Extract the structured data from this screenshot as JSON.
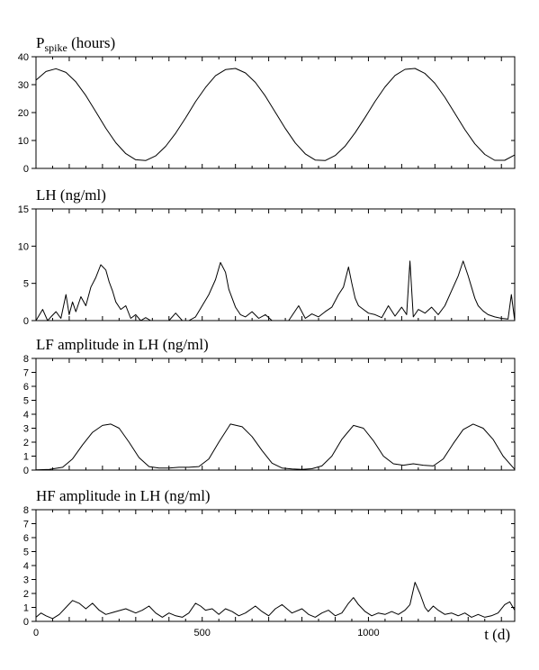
{
  "chart_data": [
    {
      "type": "line",
      "title": "P",
      "title_sub": "spike",
      "title_rest": " (hours)",
      "ylim": [
        0,
        40
      ],
      "yticks": [
        "0",
        "10",
        "20",
        "30",
        "40"
      ],
      "xlim": [
        0,
        1440
      ],
      "series": [
        {
          "x": [
            0,
            30,
            60,
            90,
            120,
            150,
            180,
            210,
            240,
            270,
            300,
            330,
            360,
            390,
            420,
            450,
            480,
            510,
            540,
            570,
            600,
            630,
            660,
            690,
            720,
            750,
            780,
            810,
            840,
            870,
            900,
            930,
            960,
            990,
            1020,
            1050,
            1080,
            1110,
            1140,
            1170,
            1200,
            1230,
            1260,
            1290,
            1320,
            1350,
            1380,
            1410,
            1440
          ],
          "y": [
            31.6,
            34.7,
            35.7,
            34.4,
            31.0,
            26.1,
            20.3,
            14.4,
            9.2,
            5.3,
            3.1,
            2.8,
            4.5,
            7.9,
            12.6,
            18.1,
            23.9,
            29.0,
            33.2,
            35.4,
            35.8,
            34.2,
            30.8,
            25.9,
            20.1,
            14.3,
            9.1,
            5.2,
            3.0,
            2.8,
            4.6,
            8.0,
            12.8,
            18.3,
            24.0,
            29.2,
            33.3,
            35.5,
            35.8,
            34.0,
            30.5,
            25.5,
            19.7,
            13.9,
            8.8,
            5.0,
            2.9,
            2.9,
            4.8
          ]
        }
      ]
    },
    {
      "type": "line",
      "title": "LH (ng/ml)",
      "ylim": [
        0,
        15
      ],
      "yticks": [
        "0",
        "5",
        "10",
        "15"
      ],
      "xlim": [
        0,
        1440
      ],
      "series": [
        {
          "x": [
            0,
            20,
            35,
            45,
            60,
            75,
            90,
            100,
            110,
            120,
            135,
            150,
            165,
            180,
            195,
            210,
            220,
            230,
            240,
            255,
            270,
            285,
            300,
            315,
            330,
            345,
            370,
            400,
            420,
            440,
            460,
            480,
            500,
            520,
            540,
            555,
            570,
            580,
            590,
            600,
            615,
            630,
            650,
            670,
            690,
            710,
            730,
            760,
            790,
            810,
            830,
            850,
            870,
            890,
            910,
            925,
            940,
            950,
            960,
            970,
            985,
            1000,
            1020,
            1040,
            1060,
            1080,
            1100,
            1115,
            1125,
            1135,
            1150,
            1170,
            1190,
            1210,
            1230,
            1250,
            1270,
            1285,
            1300,
            1310,
            1320,
            1330,
            1345,
            1360,
            1380,
            1400,
            1420,
            1430,
            1440
          ],
          "y": [
            0,
            1.5,
            0,
            0.5,
            1.2,
            0.3,
            3.5,
            0.8,
            2.5,
            1.2,
            3.2,
            2.0,
            4.5,
            5.8,
            7.5,
            6.8,
            5.2,
            4.0,
            2.5,
            1.5,
            2.0,
            0.3,
            0.8,
            0,
            0.4,
            0,
            0,
            0,
            1.0,
            0,
            0,
            0.5,
            2.0,
            3.5,
            5.5,
            7.8,
            6.5,
            4.2,
            3.0,
            1.8,
            0.8,
            0.5,
            1.2,
            0.3,
            0.8,
            0,
            0,
            0,
            2.0,
            0.3,
            0.9,
            0.5,
            1.2,
            1.8,
            3.5,
            4.5,
            7.2,
            5.0,
            3.0,
            2.0,
            1.5,
            1.0,
            0.8,
            0.4,
            2.0,
            0.6,
            1.8,
            0.8,
            8.0,
            0.5,
            1.5,
            1.0,
            1.8,
            0.8,
            2.0,
            4.0,
            6.0,
            8.0,
            6.0,
            4.5,
            3.0,
            2.0,
            1.3,
            0.8,
            0.5,
            0.3,
            0.2,
            3.5,
            0
          ]
        }
      ]
    },
    {
      "type": "line",
      "title": "LF amplitude in LH (ng/ml)",
      "ylim": [
        0,
        8
      ],
      "yticks": [
        "0",
        "1",
        "2",
        "3",
        "4",
        "5",
        "6",
        "7",
        "8"
      ],
      "xlim": [
        0,
        1440
      ],
      "series": [
        {
          "x": [
            0,
            40,
            80,
            110,
            140,
            170,
            200,
            225,
            250,
            280,
            310,
            340,
            370,
            400,
            430,
            460,
            490,
            520,
            550,
            585,
            620,
            650,
            680,
            710,
            740,
            770,
            800,
            830,
            860,
            890,
            920,
            955,
            985,
            1015,
            1045,
            1075,
            1105,
            1135,
            1165,
            1195,
            1225,
            1255,
            1285,
            1315,
            1345,
            1375,
            1405,
            1440
          ],
          "y": [
            0.02,
            0.05,
            0.2,
            0.8,
            1.8,
            2.7,
            3.2,
            3.3,
            3.0,
            2.0,
            0.9,
            0.25,
            0.15,
            0.15,
            0.2,
            0.2,
            0.25,
            0.8,
            2.0,
            3.3,
            3.1,
            2.4,
            1.4,
            0.5,
            0.15,
            0.08,
            0.05,
            0.1,
            0.3,
            1.0,
            2.2,
            3.2,
            3.0,
            2.1,
            1.0,
            0.45,
            0.35,
            0.45,
            0.35,
            0.3,
            0.8,
            1.9,
            2.9,
            3.3,
            3.0,
            2.2,
            1.0,
            0.05
          ]
        }
      ]
    },
    {
      "type": "line",
      "title": "HF amplitude in LH (ng/ml)",
      "ylim": [
        0,
        8
      ],
      "yticks": [
        "0",
        "1",
        "2",
        "3",
        "4",
        "5",
        "6",
        "7",
        "8"
      ],
      "xlim": [
        0,
        1440
      ],
      "xticks": [
        0,
        500,
        1000
      ],
      "xlabel": "t (d)",
      "series": [
        {
          "x": [
            0,
            15,
            30,
            50,
            70,
            90,
            110,
            130,
            150,
            170,
            190,
            210,
            240,
            270,
            300,
            320,
            340,
            360,
            380,
            400,
            420,
            440,
            460,
            480,
            495,
            510,
            530,
            550,
            570,
            590,
            610,
            630,
            660,
            680,
            700,
            720,
            740,
            770,
            800,
            820,
            840,
            860,
            880,
            900,
            920,
            940,
            955,
            970,
            990,
            1010,
            1030,
            1050,
            1070,
            1090,
            1110,
            1125,
            1140,
            1155,
            1170,
            1180,
            1195,
            1210,
            1230,
            1250,
            1270,
            1290,
            1310,
            1330,
            1350,
            1370,
            1390,
            1410,
            1425,
            1440
          ],
          "y": [
            0.3,
            0.6,
            0.4,
            0.2,
            0.5,
            1.0,
            1.5,
            1.3,
            0.9,
            1.3,
            0.8,
            0.5,
            0.7,
            0.9,
            0.6,
            0.8,
            1.1,
            0.6,
            0.3,
            0.6,
            0.4,
            0.3,
            0.6,
            1.3,
            1.1,
            0.8,
            0.9,
            0.5,
            0.9,
            0.7,
            0.4,
            0.6,
            1.1,
            0.7,
            0.4,
            0.9,
            1.2,
            0.6,
            0.9,
            0.5,
            0.3,
            0.6,
            0.8,
            0.4,
            0.6,
            1.3,
            1.7,
            1.2,
            0.7,
            0.4,
            0.6,
            0.5,
            0.7,
            0.5,
            0.8,
            1.2,
            2.8,
            2.0,
            1.0,
            0.7,
            1.1,
            0.8,
            0.5,
            0.6,
            0.4,
            0.6,
            0.3,
            0.5,
            0.3,
            0.4,
            0.6,
            1.2,
            1.4,
            0.8
          ]
        }
      ]
    }
  ]
}
